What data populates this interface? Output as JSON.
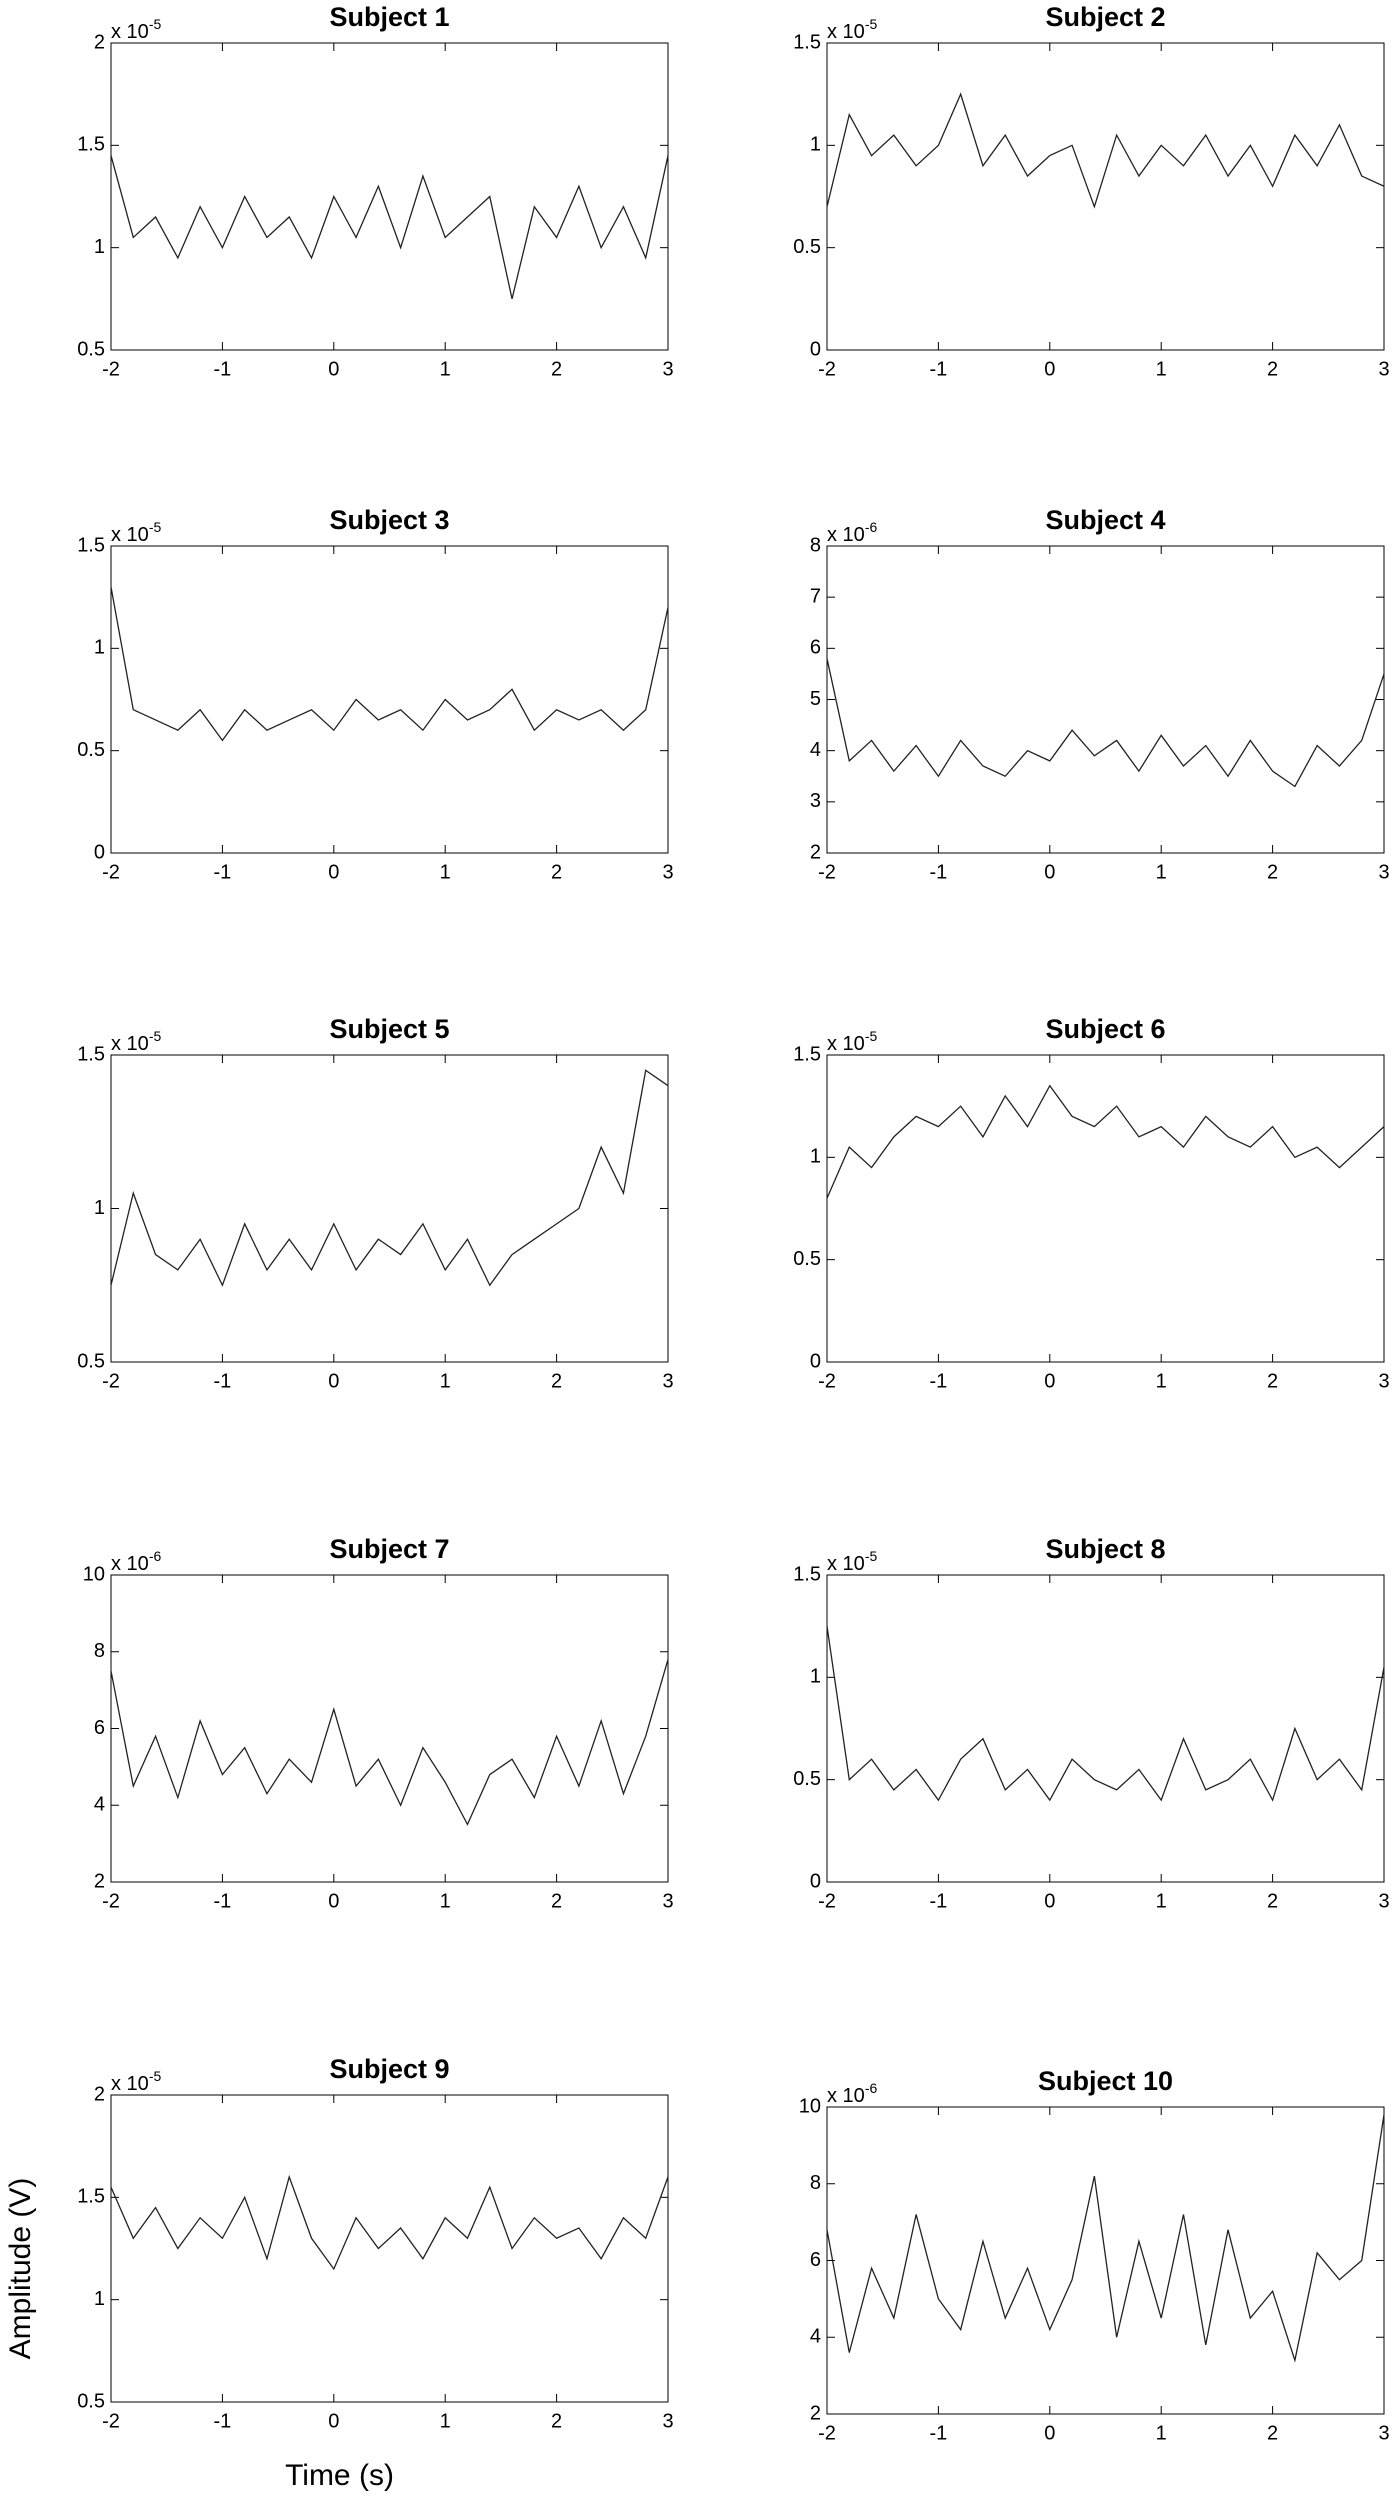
{
  "chart_data": [
    {
      "type": "line",
      "title": "Subject 1",
      "y_multiplier": "x 10",
      "y_exponent": "-5",
      "xlim": [
        -2,
        3
      ],
      "xticks": [
        -2,
        -1,
        0,
        1,
        2,
        3
      ],
      "ylim": [
        0.5,
        2
      ],
      "yticks": [
        0.5,
        1,
        1.5,
        2
      ],
      "color": "#222222",
      "x": [
        -2,
        -1.8,
        -1.6,
        -1.4,
        -1.2,
        -1,
        -0.8,
        -0.6,
        -0.4,
        -0.2,
        0,
        0.2,
        0.4,
        0.6,
        0.8,
        1,
        1.2,
        1.4,
        1.6,
        1.8,
        2,
        2.2,
        2.4,
        2.6,
        2.8,
        3
      ],
      "values": [
        1.45,
        1.05,
        1.15,
        0.95,
        1.2,
        1.0,
        1.25,
        1.05,
        1.15,
        0.95,
        1.25,
        1.05,
        1.3,
        1.0,
        1.35,
        1.05,
        1.15,
        1.25,
        0.75,
        1.2,
        1.05,
        1.3,
        1.0,
        1.2,
        0.95,
        1.45
      ]
    },
    {
      "type": "line",
      "title": "Subject 2",
      "y_multiplier": "x 10",
      "y_exponent": "-5",
      "xlim": [
        -2,
        3
      ],
      "xticks": [
        -2,
        -1,
        0,
        1,
        2,
        3
      ],
      "ylim": [
        0,
        1.5
      ],
      "yticks": [
        0,
        0.5,
        1,
        1.5
      ],
      "color": "#222222",
      "x": [
        -2,
        -1.8,
        -1.6,
        -1.4,
        -1.2,
        -1,
        -0.8,
        -0.6,
        -0.4,
        -0.2,
        0,
        0.2,
        0.4,
        0.6,
        0.8,
        1,
        1.2,
        1.4,
        1.6,
        1.8,
        2,
        2.2,
        2.4,
        2.6,
        2.8,
        3
      ],
      "values": [
        0.7,
        1.15,
        0.95,
        1.05,
        0.9,
        1.0,
        1.25,
        0.9,
        1.05,
        0.85,
        0.95,
        1.0,
        0.7,
        1.05,
        0.85,
        1.0,
        0.9,
        1.05,
        0.85,
        1.0,
        0.8,
        1.05,
        0.9,
        1.1,
        0.85,
        0.8
      ]
    },
    {
      "type": "line",
      "title": "Subject 3",
      "y_multiplier": "x 10",
      "y_exponent": "-5",
      "xlim": [
        -2,
        3
      ],
      "xticks": [
        -2,
        -1,
        0,
        1,
        2,
        3
      ],
      "ylim": [
        0,
        1.5
      ],
      "yticks": [
        0,
        0.5,
        1,
        1.5
      ],
      "color": "#222222",
      "x": [
        -2,
        -1.8,
        -1.6,
        -1.4,
        -1.2,
        -1,
        -0.8,
        -0.6,
        -0.4,
        -0.2,
        0,
        0.2,
        0.4,
        0.6,
        0.8,
        1,
        1.2,
        1.4,
        1.6,
        1.8,
        2,
        2.2,
        2.4,
        2.6,
        2.8,
        3
      ],
      "values": [
        1.3,
        0.7,
        0.65,
        0.6,
        0.7,
        0.55,
        0.7,
        0.6,
        0.65,
        0.7,
        0.6,
        0.75,
        0.65,
        0.7,
        0.6,
        0.75,
        0.65,
        0.7,
        0.8,
        0.6,
        0.7,
        0.65,
        0.7,
        0.6,
        0.7,
        1.2
      ]
    },
    {
      "type": "line",
      "title": "Subject 4",
      "y_multiplier": "x 10",
      "y_exponent": "-6",
      "xlim": [
        -2,
        3
      ],
      "xticks": [
        -2,
        -1,
        0,
        1,
        2,
        3
      ],
      "ylim": [
        2,
        8
      ],
      "yticks": [
        2,
        3,
        4,
        5,
        6,
        7,
        8
      ],
      "color": "#222222",
      "x": [
        -2,
        -1.8,
        -1.6,
        -1.4,
        -1.2,
        -1,
        -0.8,
        -0.6,
        -0.4,
        -0.2,
        0,
        0.2,
        0.4,
        0.6,
        0.8,
        1,
        1.2,
        1.4,
        1.6,
        1.8,
        2,
        2.2,
        2.4,
        2.6,
        2.8,
        3
      ],
      "values": [
        5.8,
        3.8,
        4.2,
        3.6,
        4.1,
        3.5,
        4.2,
        3.7,
        3.5,
        4.0,
        3.8,
        4.4,
        3.9,
        4.2,
        3.6,
        4.3,
        3.7,
        4.1,
        3.5,
        4.2,
        3.6,
        3.3,
        4.1,
        3.7,
        4.2,
        5.5
      ]
    },
    {
      "type": "line",
      "title": "Subject 5",
      "y_multiplier": "x 10",
      "y_exponent": "-5",
      "xlim": [
        -2,
        3
      ],
      "xticks": [
        -2,
        -1,
        0,
        1,
        2,
        3
      ],
      "ylim": [
        0.5,
        1.5
      ],
      "yticks": [
        0.5,
        1,
        1.5
      ],
      "color": "#222222",
      "x": [
        -2,
        -1.8,
        -1.6,
        -1.4,
        -1.2,
        -1,
        -0.8,
        -0.6,
        -0.4,
        -0.2,
        0,
        0.2,
        0.4,
        0.6,
        0.8,
        1,
        1.2,
        1.4,
        1.6,
        1.8,
        2,
        2.2,
        2.4,
        2.6,
        2.8,
        3
      ],
      "values": [
        0.75,
        1.05,
        0.85,
        0.8,
        0.9,
        0.75,
        0.95,
        0.8,
        0.9,
        0.8,
        0.95,
        0.8,
        0.9,
        0.85,
        0.95,
        0.8,
        0.9,
        0.75,
        0.85,
        0.9,
        0.95,
        1.0,
        1.2,
        1.05,
        1.45,
        1.4
      ]
    },
    {
      "type": "line",
      "title": "Subject 6",
      "y_multiplier": "x 10",
      "y_exponent": "-5",
      "xlim": [
        -2,
        3
      ],
      "xticks": [
        -2,
        -1,
        0,
        1,
        2,
        3
      ],
      "ylim": [
        0,
        1.5
      ],
      "yticks": [
        0,
        0.5,
        1,
        1.5
      ],
      "color": "#222222",
      "x": [
        -2,
        -1.8,
        -1.6,
        -1.4,
        -1.2,
        -1,
        -0.8,
        -0.6,
        -0.4,
        -0.2,
        0,
        0.2,
        0.4,
        0.6,
        0.8,
        1,
        1.2,
        1.4,
        1.6,
        1.8,
        2,
        2.2,
        2.4,
        2.6,
        2.8,
        3
      ],
      "values": [
        0.8,
        1.05,
        0.95,
        1.1,
        1.2,
        1.15,
        1.25,
        1.1,
        1.3,
        1.15,
        1.35,
        1.2,
        1.15,
        1.25,
        1.1,
        1.15,
        1.05,
        1.2,
        1.1,
        1.05,
        1.15,
        1.0,
        1.05,
        0.95,
        1.05,
        1.15
      ]
    },
    {
      "type": "line",
      "title": "Subject 7",
      "y_multiplier": "x 10",
      "y_exponent": "-6",
      "xlim": [
        -2,
        3
      ],
      "xticks": [
        -2,
        -1,
        0,
        1,
        2,
        3
      ],
      "ylim": [
        2,
        10
      ],
      "yticks": [
        2,
        4,
        6,
        8,
        10
      ],
      "color": "#222222",
      "x": [
        -2,
        -1.8,
        -1.6,
        -1.4,
        -1.2,
        -1,
        -0.8,
        -0.6,
        -0.4,
        -0.2,
        0,
        0.2,
        0.4,
        0.6,
        0.8,
        1,
        1.2,
        1.4,
        1.6,
        1.8,
        2,
        2.2,
        2.4,
        2.6,
        2.8,
        3
      ],
      "values": [
        7.5,
        4.5,
        5.8,
        4.2,
        6.2,
        4.8,
        5.5,
        4.3,
        5.2,
        4.6,
        6.5,
        4.5,
        5.2,
        4.0,
        5.5,
        4.6,
        3.5,
        4.8,
        5.2,
        4.2,
        5.8,
        4.5,
        6.2,
        4.3,
        5.8,
        7.8
      ]
    },
    {
      "type": "line",
      "title": "Subject 8",
      "y_multiplier": "x 10",
      "y_exponent": "-5",
      "xlim": [
        -2,
        3
      ],
      "xticks": [
        -2,
        -1,
        0,
        1,
        2,
        3
      ],
      "ylim": [
        0,
        1.5
      ],
      "yticks": [
        0,
        0.5,
        1,
        1.5
      ],
      "color": "#222222",
      "x": [
        -2,
        -1.8,
        -1.6,
        -1.4,
        -1.2,
        -1,
        -0.8,
        -0.6,
        -0.4,
        -0.2,
        0,
        0.2,
        0.4,
        0.6,
        0.8,
        1,
        1.2,
        1.4,
        1.6,
        1.8,
        2,
        2.2,
        2.4,
        2.6,
        2.8,
        3
      ],
      "values": [
        1.25,
        0.5,
        0.6,
        0.45,
        0.55,
        0.4,
        0.6,
        0.7,
        0.45,
        0.55,
        0.4,
        0.6,
        0.5,
        0.45,
        0.55,
        0.4,
        0.7,
        0.45,
        0.5,
        0.6,
        0.4,
        0.75,
        0.5,
        0.6,
        0.45,
        1.05
      ]
    },
    {
      "type": "line",
      "title": "Subject 9",
      "y_multiplier": "x 10",
      "y_exponent": "-5",
      "xlabel": "Time (s)",
      "ylabel": "Amplitude (V)",
      "xlim": [
        -2,
        3
      ],
      "xticks": [
        -2,
        -1,
        0,
        1,
        2,
        3
      ],
      "ylim": [
        0.5,
        2
      ],
      "yticks": [
        0.5,
        1,
        1.5,
        2
      ],
      "color": "#222222",
      "x": [
        -2,
        -1.8,
        -1.6,
        -1.4,
        -1.2,
        -1,
        -0.8,
        -0.6,
        -0.4,
        -0.2,
        0,
        0.2,
        0.4,
        0.6,
        0.8,
        1,
        1.2,
        1.4,
        1.6,
        1.8,
        2,
        2.2,
        2.4,
        2.6,
        2.8,
        3
      ],
      "values": [
        1.55,
        1.3,
        1.45,
        1.25,
        1.4,
        1.3,
        1.5,
        1.2,
        1.6,
        1.3,
        1.15,
        1.4,
        1.25,
        1.35,
        1.2,
        1.4,
        1.3,
        1.55,
        1.25,
        1.4,
        1.3,
        1.35,
        1.2,
        1.4,
        1.3,
        1.6
      ]
    },
    {
      "type": "line",
      "title": "Subject 10",
      "y_multiplier": "x 10",
      "y_exponent": "-6",
      "xlim": [
        -2,
        3
      ],
      "xticks": [
        -2,
        -1,
        0,
        1,
        2,
        3
      ],
      "ylim": [
        2,
        10
      ],
      "yticks": [
        2,
        4,
        6,
        8,
        10
      ],
      "color": "#222222",
      "x": [
        -2,
        -1.8,
        -1.6,
        -1.4,
        -1.2,
        -1,
        -0.8,
        -0.6,
        -0.4,
        -0.2,
        0,
        0.2,
        0.4,
        0.6,
        0.8,
        1,
        1.2,
        1.4,
        1.6,
        1.8,
        2,
        2.2,
        2.4,
        2.6,
        2.8,
        3
      ],
      "values": [
        6.8,
        3.6,
        5.8,
        4.5,
        7.2,
        5.0,
        4.2,
        6.5,
        4.5,
        5.8,
        4.2,
        5.5,
        8.2,
        4.0,
        6.5,
        4.5,
        7.2,
        3.8,
        6.8,
        4.5,
        5.2,
        3.4,
        6.2,
        5.5,
        6.0,
        9.8
      ]
    }
  ]
}
